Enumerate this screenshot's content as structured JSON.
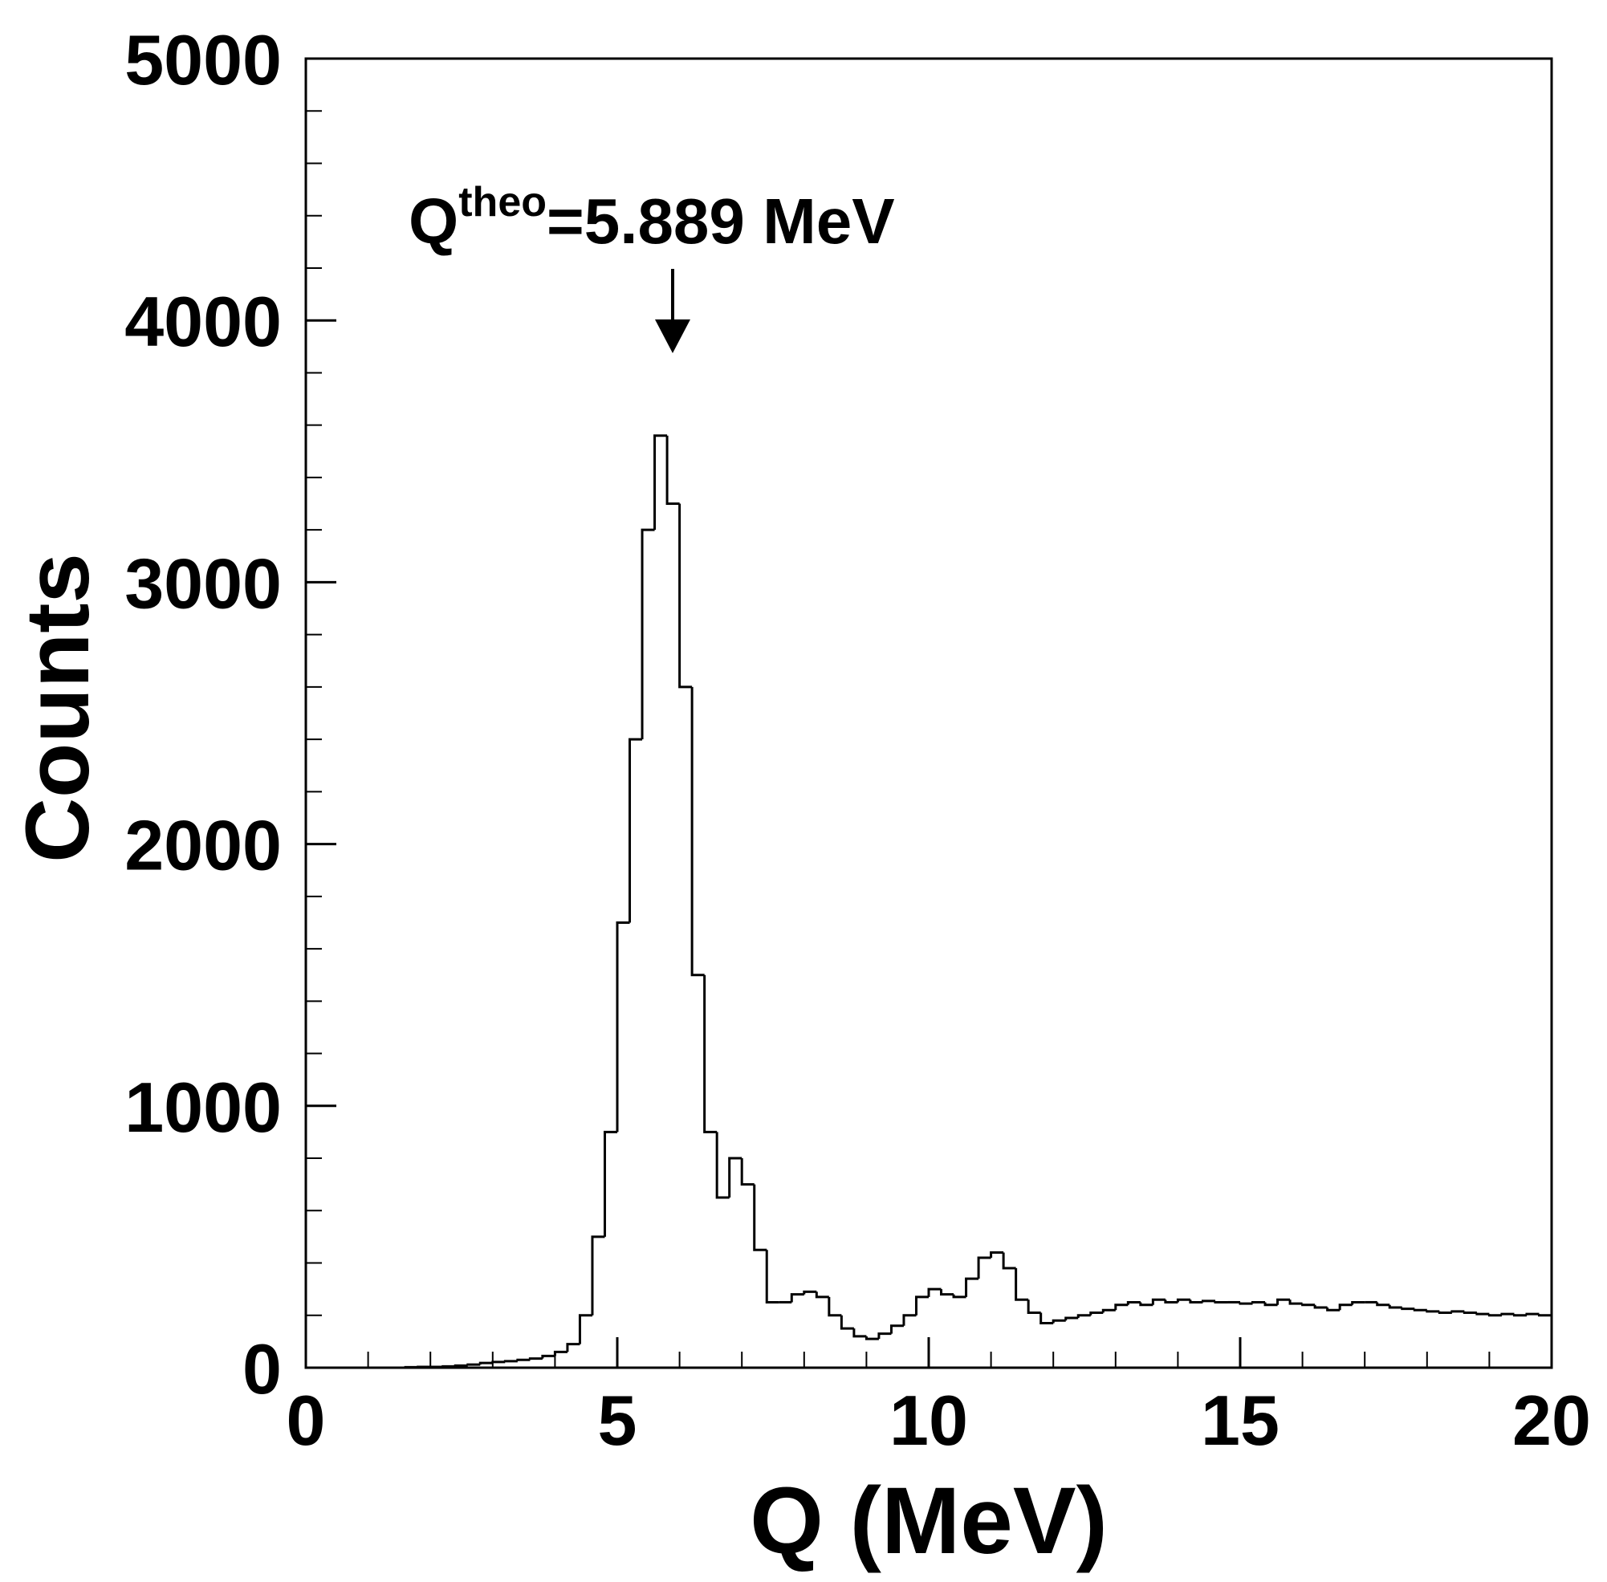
{
  "chart_data": {
    "type": "histogram",
    "xlabel": "Q (MeV)",
    "ylabel": "Counts",
    "color": "#000000",
    "bins": [
      0,
      0.2,
      0.4,
      0.6,
      0.8,
      1,
      1.2,
      1.4,
      1.6,
      1.8,
      2,
      2.2,
      2.4,
      2.6,
      2.8,
      3,
      3.2,
      3.4,
      3.6,
      3.8,
      4,
      4.2,
      4.4,
      4.6,
      4.8,
      5,
      5.2,
      5.4,
      5.6,
      5.8,
      6,
      6.2,
      6.4,
      6.6,
      6.8,
      7,
      7.2,
      7.4,
      7.6,
      7.8,
      8,
      8.2,
      8.4,
      8.6,
      8.8,
      9,
      9.2,
      9.4,
      9.6,
      9.8,
      10,
      10.2,
      10.4,
      10.6,
      10.8,
      11,
      11.2,
      11.4,
      11.6,
      11.8,
      12,
      12.2,
      12.4,
      12.6,
      12.8,
      13,
      13.2,
      13.4,
      13.6,
      13.8,
      14,
      14.2,
      14.4,
      14.6,
      14.8,
      15,
      15.2,
      15.4,
      15.6,
      15.8,
      16,
      16.2,
      16.4,
      16.6,
      16.8,
      17,
      17.2,
      17.4,
      17.6,
      17.8,
      18,
      18.2,
      18.4,
      18.6,
      18.8,
      19,
      19.2,
      19.4,
      19.6,
      19.8,
      20
    ],
    "values": [
      0,
      0,
      0,
      0,
      0,
      0,
      0,
      0,
      2,
      3,
      3,
      5,
      8,
      12,
      18,
      22,
      25,
      30,
      35,
      45,
      60,
      90,
      200,
      500,
      900,
      1700,
      2400,
      3200,
      3560,
      3300,
      2600,
      1500,
      900,
      650,
      800,
      700,
      450,
      250,
      250,
      280,
      290,
      270,
      200,
      150,
      120,
      110,
      130,
      160,
      200,
      270,
      300,
      280,
      270,
      340,
      420,
      440,
      380,
      260,
      210,
      170,
      180,
      190,
      200,
      210,
      220,
      240,
      250,
      240,
      260,
      250,
      260,
      250,
      255,
      250,
      250,
      245,
      250,
      240,
      260,
      245,
      240,
      230,
      220,
      240,
      250,
      250,
      240,
      230,
      225,
      220,
      215,
      210,
      215,
      210,
      205,
      200,
      205,
      200,
      205,
      200
    ],
    "xlim": [
      0,
      20
    ],
    "ylim": [
      0,
      5000
    ],
    "xticks": [
      0,
      5,
      10,
      15,
      20
    ],
    "yticks": [
      0,
      1000,
      2000,
      3000,
      4000,
      5000
    ],
    "xminorticks": [
      1,
      2,
      3,
      4,
      6,
      7,
      8,
      9,
      11,
      12,
      13,
      14,
      16,
      17,
      18,
      19
    ],
    "yminorticks": [
      200,
      400,
      600,
      800,
      1200,
      1400,
      1600,
      1800,
      2200,
      2400,
      2600,
      2800,
      3200,
      3400,
      3600,
      3800,
      4200,
      4400,
      4600,
      4800
    ],
    "annotation": {
      "base": "Q",
      "superscript": "theo",
      "text": "=5.889 MeV",
      "x": 5.889
    }
  }
}
